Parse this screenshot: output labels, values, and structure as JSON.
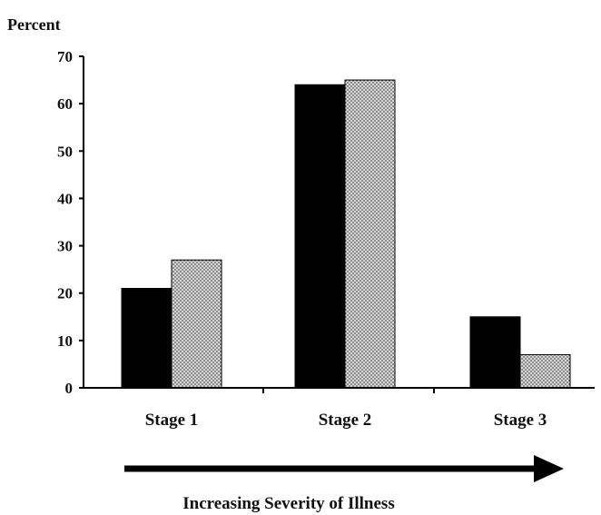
{
  "chart_data": {
    "type": "bar",
    "title": "",
    "ylabel": "Percent",
    "xlabel": "Increasing Severity of Illness",
    "categories": [
      "Stage 1",
      "Stage 2",
      "Stage 3"
    ],
    "series": [
      {
        "values": [
          21,
          64,
          15
        ],
        "fill": "solid-black"
      },
      {
        "values": [
          27,
          65,
          7
        ],
        "fill": "gray-dotted-pattern"
      }
    ],
    "ylim": [
      0,
      70
    ],
    "yticks": [
      "0",
      "10",
      "20",
      "30",
      "40",
      "50",
      "60",
      "70"
    ],
    "grid": false,
    "legend": "none",
    "annotation": "arrow pointing right under x-axis"
  },
  "colors": {
    "series_1": "#000000",
    "series_2_dots": "#555555",
    "series_2_bg": "#d8d8d8",
    "axis": "#000000"
  }
}
